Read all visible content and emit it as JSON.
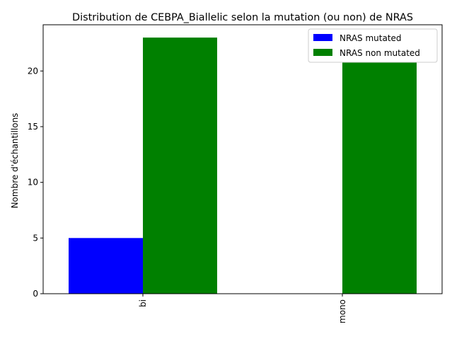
{
  "chart_data": {
    "type": "bar",
    "title": "Distribution de CEBPA_Biallelic selon la mutation (ou non) de NRAS",
    "xlabel": "",
    "ylabel": "Nombre d'échantillons",
    "categories": [
      "bi",
      "mono"
    ],
    "series": [
      {
        "name": "NRAS mutated",
        "values": [
          5,
          0
        ],
        "color": "#0000ff"
      },
      {
        "name": "NRAS non mutated",
        "values": [
          23,
          21
        ],
        "color": "#008000"
      }
    ],
    "ylim": [
      0,
      24.15
    ],
    "yticks": [
      0,
      5,
      10,
      15,
      20
    ],
    "grid": false,
    "legend": "top-right"
  }
}
